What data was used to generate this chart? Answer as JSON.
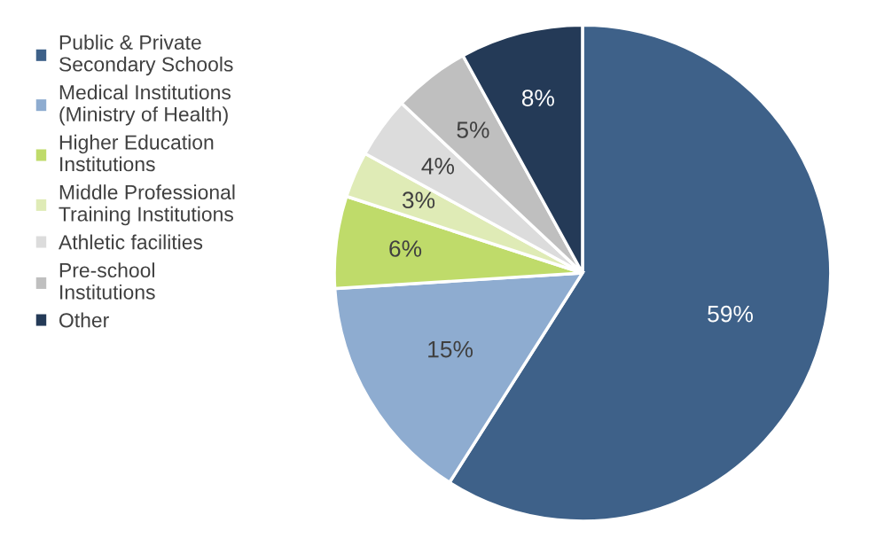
{
  "chart_data": {
    "type": "pie",
    "categories": [
      " Public & Private Secondary Schools",
      "Medical Institutions (Ministry of Health)",
      "Higher Education Institutions",
      "Middle Professional Training Institutions",
      "Athletic facilities",
      "Pre-school Institutions",
      "Other"
    ],
    "values": [
      59,
      15,
      6,
      3,
      4,
      5,
      8
    ],
    "value_labels": [
      "59%",
      "15%",
      "6%",
      "3%",
      "4%",
      "5%",
      "8%"
    ],
    "colors": [
      "#3e6189",
      "#8eacd0",
      "#bfdb6a",
      "#dfebb6",
      "#dcdcdc",
      "#bfbfbf",
      "#243a57"
    ],
    "legend": "left"
  }
}
